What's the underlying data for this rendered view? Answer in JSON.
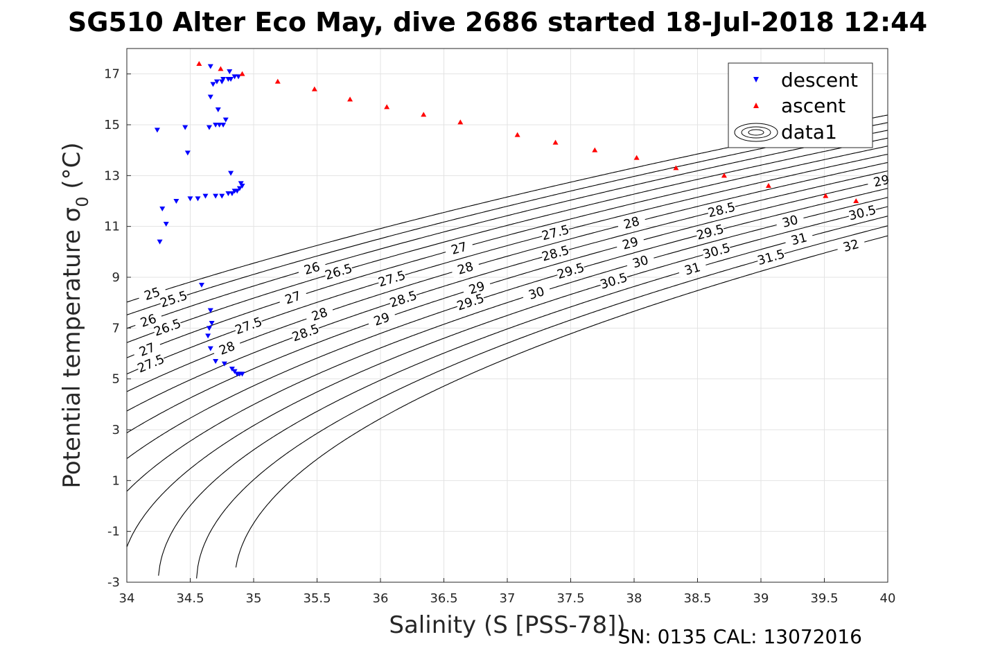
{
  "chart_data": {
    "type": "scatter",
    "title": "SG510 Alter Eco May, dive 2686 started 18-Jul-2018 12:44",
    "xlabel": "Salinity (S [PSS-78])",
    "ylabel": "Potential temperature σ",
    "ylabel_sub": "0",
    "ylabel_unit": " (°C)",
    "xlim": [
      34,
      40
    ],
    "ylim": [
      -3,
      18
    ],
    "xticks": [
      34,
      34.5,
      35,
      35.5,
      36,
      36.5,
      37,
      37.5,
      38,
      38.5,
      39,
      39.5,
      40
    ],
    "xtick_labels": [
      "34",
      "34.5",
      "35",
      "35.5",
      "36",
      "36.5",
      "37",
      "37.5",
      "38",
      "38.5",
      "39",
      "39.5",
      "40"
    ],
    "yticks": [
      -3,
      -1,
      1,
      3,
      5,
      7,
      9,
      11,
      13,
      15,
      17
    ],
    "ytick_labels": [
      "-3",
      "-1",
      "1",
      "3",
      "5",
      "7",
      "9",
      "11",
      "13",
      "15",
      "17"
    ],
    "grid": true,
    "legend_position": "top-right",
    "footer": "SN: 0135  CAL: 13072016",
    "series": [
      {
        "name": "descent",
        "marker": "triangle-down",
        "color": "#0000ff",
        "x": [
          34.66,
          34.81,
          34.85,
          34.88,
          34.76,
          34.82,
          34.68,
          34.8,
          34.75,
          34.71,
          34.66,
          34.72,
          34.24,
          34.46,
          34.78,
          34.76,
          34.73,
          34.7,
          34.65,
          34.48,
          34.82,
          34.9,
          34.91,
          34.89,
          34.87,
          34.85,
          34.83,
          34.8,
          34.75,
          34.7,
          34.62,
          34.56,
          34.5,
          34.39,
          34.28,
          34.31,
          34.26,
          34.59,
          34.66,
          34.67,
          34.65,
          34.64,
          34.66,
          34.7,
          34.77,
          34.83,
          34.85,
          34.87,
          34.89,
          34.91
        ],
        "y": [
          17.3,
          17.1,
          16.9,
          16.9,
          16.8,
          16.8,
          16.6,
          16.8,
          16.7,
          16.7,
          16.1,
          15.6,
          14.8,
          14.9,
          15.2,
          15.0,
          15.0,
          15.0,
          14.9,
          13.9,
          13.1,
          12.7,
          12.6,
          12.5,
          12.4,
          12.4,
          12.3,
          12.3,
          12.2,
          12.2,
          12.2,
          12.1,
          12.1,
          12.0,
          11.7,
          11.1,
          10.4,
          8.7,
          7.7,
          7.2,
          7.0,
          6.7,
          6.2,
          5.7,
          5.6,
          5.4,
          5.3,
          5.2,
          5.2,
          5.2
        ]
      },
      {
        "name": "ascent",
        "marker": "triangle-up",
        "color": "#ff0000",
        "x": [
          34.57,
          34.74,
          34.91,
          35.19,
          35.48,
          35.76,
          36.05,
          36.34,
          36.63,
          37.08,
          37.38,
          37.69,
          38.02,
          38.33,
          38.71,
          39.06,
          39.51,
          39.75
        ],
        "y": [
          17.4,
          17.2,
          17.0,
          16.7,
          16.4,
          16.0,
          15.7,
          15.4,
          15.1,
          14.6,
          14.3,
          14.0,
          13.7,
          13.3,
          13.0,
          12.6,
          12.2,
          12.0
        ]
      },
      {
        "name": "data1",
        "marker": "contour",
        "color": "#000000",
        "levels": [
          25,
          25.5,
          26,
          26.5,
          27,
          27.5,
          28,
          28.5,
          29,
          29.5,
          30,
          30.5,
          31,
          31.5,
          32
        ],
        "label_text": [
          "25",
          "25.5",
          "26",
          "26.5",
          "27",
          "27.5",
          "28",
          "28.5",
          "29",
          "29.5",
          "30",
          "30.5",
          "31",
          "31.5",
          "32"
        ]
      }
    ]
  }
}
